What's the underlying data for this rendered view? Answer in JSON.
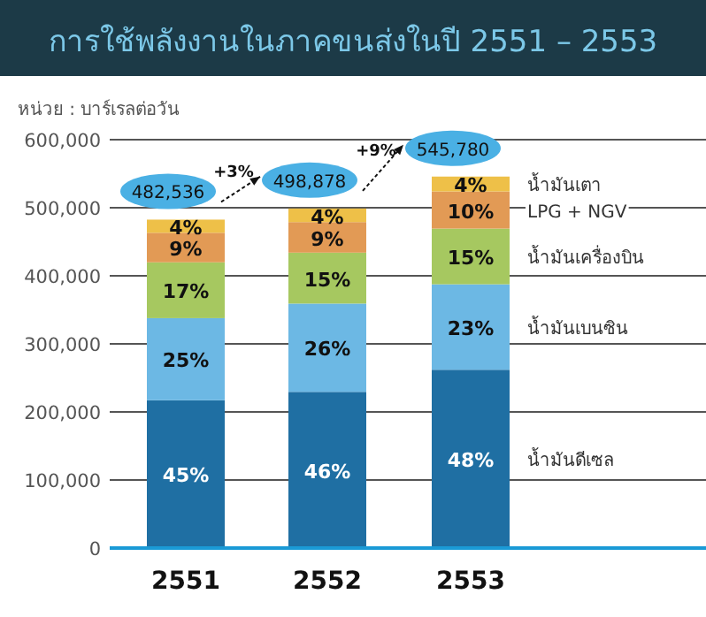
{
  "chart_data": {
    "type": "bar",
    "stacked": true,
    "title": "การใช้พลังงานในภาคขนส่งในปี 2551 – 2553",
    "ylabel": "หน่วย : บาร์เรลต่อวัน",
    "categories": [
      "2551",
      "2552",
      "2553"
    ],
    "series": [
      {
        "name": "น้ำมันดีเซล",
        "color": "#1f6fa3",
        "values": [
          217142,
          229484,
          261975
        ]
      },
      {
        "name": "น้ำมันเบนซิน",
        "color": "#6cb8e4",
        "values": [
          120634,
          129708,
          125529
        ]
      },
      {
        "name": "น้ำมันเครื่องบิน",
        "color": "#a6c860",
        "values": [
          82031,
          74832,
          81867
        ]
      },
      {
        "name": "LPG + NGV",
        "color": "#e29a55",
        "values": [
          43428,
          44899,
          54578
        ]
      },
      {
        "name": "น้ำมันเตา",
        "color": "#eec048",
        "values": [
          19301,
          19955,
          21831
        ]
      }
    ],
    "totals": [
      "482,536",
      "498,878",
      "545,780"
    ],
    "annotations": [
      "+3%",
      "+9%",
      "45%",
      "46%",
      "48%",
      "25%",
      "26%",
      "23%",
      "17%",
      "15%",
      "15%",
      "9%",
      "9%",
      "10%",
      "4%",
      "4%",
      "4%"
    ],
    "ylim": [
      0,
      600000
    ],
    "yticks": [
      {
        "value": 0,
        "label": "0"
      },
      {
        "value": 100000,
        "label": "100,000"
      },
      {
        "value": 200000,
        "label": "200,000"
      },
      {
        "value": 300000,
        "label": "300,000"
      },
      {
        "value": 400000,
        "label": "400,000"
      },
      {
        "value": 500000,
        "label": "500,000"
      },
      {
        "value": 600000,
        "label": "600,000"
      }
    ],
    "grid": "y",
    "legend": "right"
  }
}
